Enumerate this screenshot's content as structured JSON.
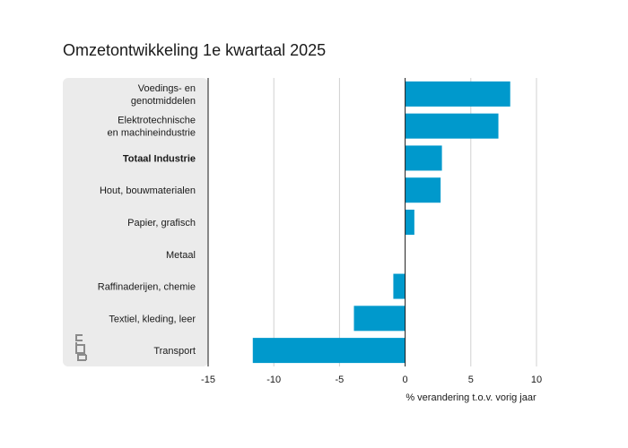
{
  "chart_data": {
    "type": "bar",
    "orientation": "horizontal",
    "title": "Omzetontwikkeling 1e kwartaal 2025",
    "xlabel": "% verandering t.o.v. vorig jaar",
    "ylabel": "",
    "xlim": [
      -15,
      10
    ],
    "x_ticks": [
      "-15",
      "-10",
      "-5",
      "0",
      "5",
      "10"
    ],
    "x_tick_values": [
      -15,
      -10,
      -5,
      0,
      5,
      10
    ],
    "grid": "vertical",
    "bar_color": "#0099cc",
    "categories": [
      "Voedings- en genotmiddelen",
      "Elektrotechnische en machineindustrie",
      "Totaal Industrie",
      "Hout, bouwmaterialen",
      "Papier, grafisch",
      "Metaal",
      "Raffinaderijen, chemie",
      "Textiel, kleding, leer",
      "Transport"
    ],
    "category_lines": [
      [
        "Voedings- en",
        "genotmiddelen"
      ],
      [
        "Elektrotechnische",
        "en machineindustrie"
      ],
      [
        "Totaal Industrie"
      ],
      [
        "Hout, bouwmaterialen"
      ],
      [
        "Papier, grafisch"
      ],
      [
        "Metaal"
      ],
      [
        "Raffinaderijen, chemie"
      ],
      [
        "Textiel, kleding, leer"
      ],
      [
        "Transport"
      ]
    ],
    "bold_categories": [
      "Totaal Industrie"
    ],
    "values": [
      8.0,
      7.1,
      2.8,
      2.7,
      0.7,
      0.0,
      -0.9,
      -3.9,
      -11.6
    ]
  },
  "logo": {
    "text": "cbs"
  }
}
